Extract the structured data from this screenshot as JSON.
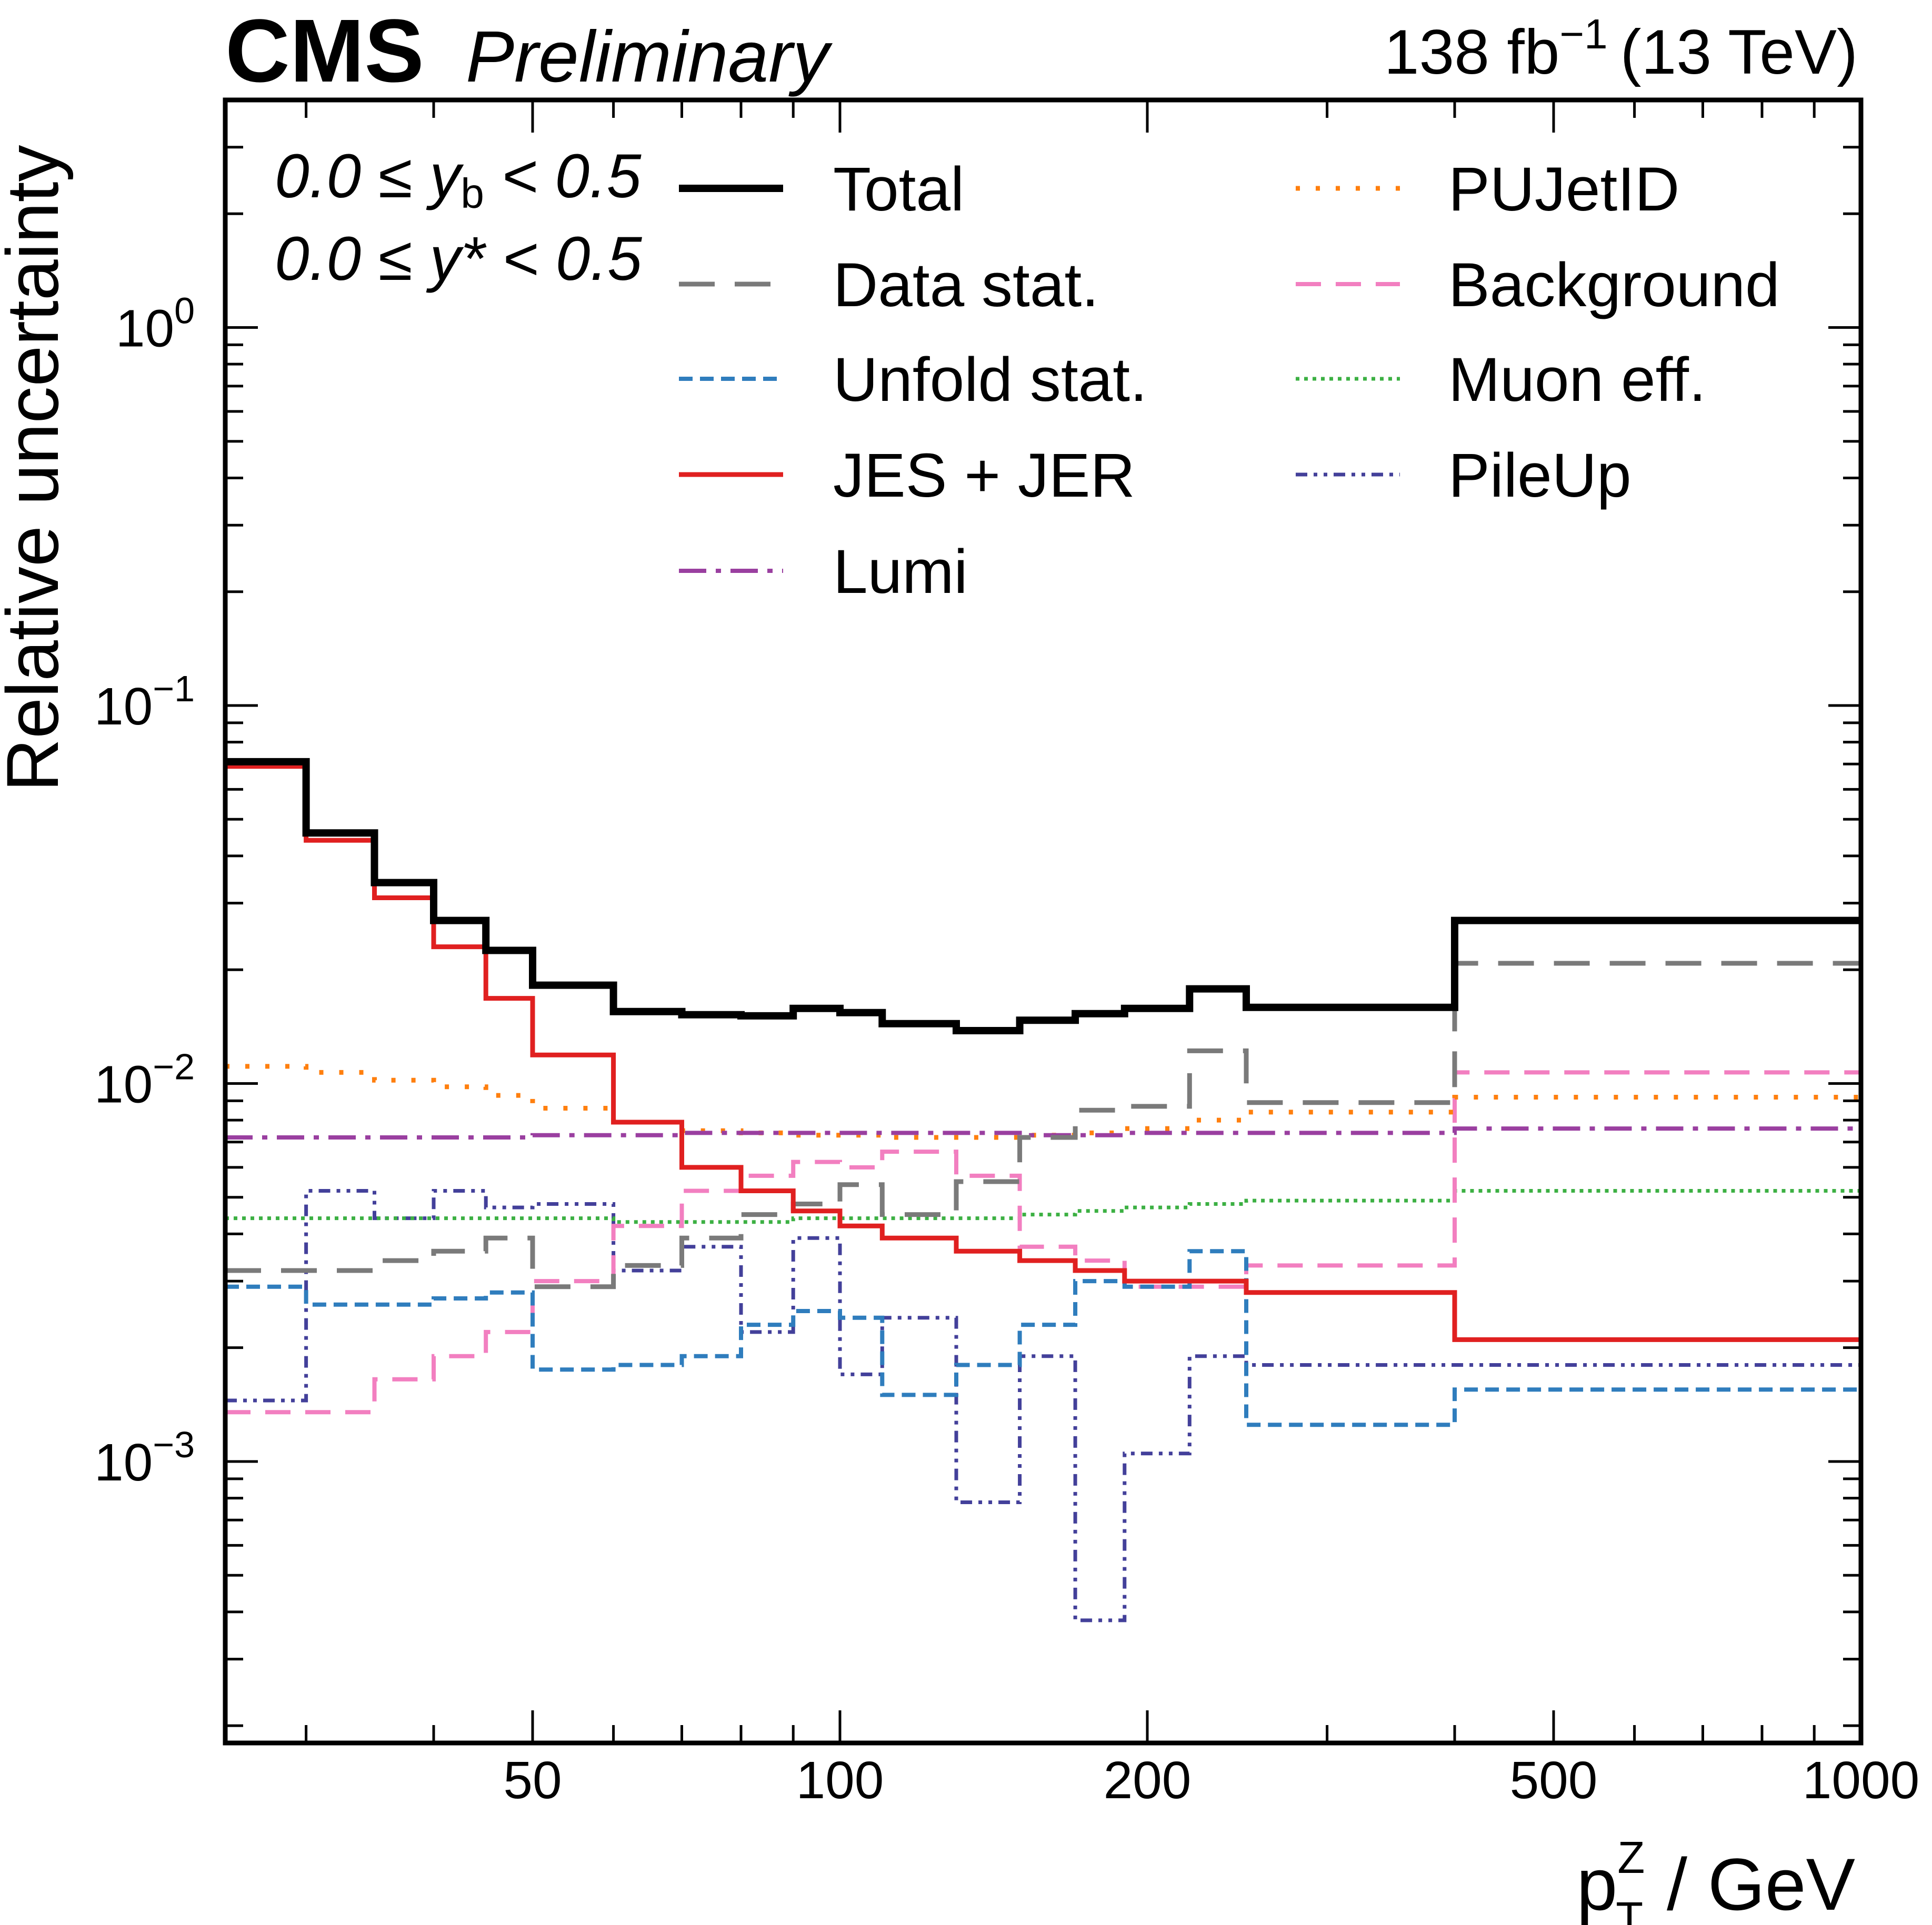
{
  "header": {
    "experiment": "CMS",
    "status": "Preliminary",
    "lumi_text": "138 fb",
    "lumi_exponent": "−1",
    "energy": "(13 TeV)"
  },
  "annotations": {
    "cut_yb": {
      "low": "0.0 ≤ ",
      "var": "y",
      "sub": "b",
      "high": " < 0.5"
    },
    "cut_ystar": {
      "low": "0.0 ≤ ",
      "var": "y*",
      "high": " < 0.5"
    }
  },
  "colors": {
    "total": "#000000",
    "data_stat": "#7a7a7a",
    "unfold_stat": "#2f7dbd",
    "jes_jer": "#e02020",
    "lumi": "#9a3fa0",
    "pujetid": "#ff7f0e",
    "background": "#f27fc0",
    "muon_eff": "#3cb043",
    "pileup": "#43409a"
  },
  "chart_data": {
    "type": "step-histogram",
    "title": "",
    "xlabel": {
      "base": "p",
      "sup": "Z",
      "sub": "T",
      "unit": " / GeV"
    },
    "ylabel": "Relative uncertainty",
    "xscale": "log",
    "yscale": "log",
    "xlim": [
      25,
      1000
    ],
    "ylim": [
      0.00018,
      4.0
    ],
    "x_ticks": [
      50,
      100,
      200,
      500,
      1000
    ],
    "x_tick_labels": [
      "50",
      "100",
      "200",
      "500",
      "1000"
    ],
    "y_ticks": [
      0.001,
      0.01,
      0.1,
      1
    ],
    "y_tick_labels": [
      {
        "base": "10",
        "exp": "−3"
      },
      {
        "base": "10",
        "exp": "−2"
      },
      {
        "base": "10",
        "exp": "−1"
      },
      {
        "base": "10",
        "exp": "0"
      }
    ],
    "legend_position": "top-right",
    "bin_edges": [
      25,
      30,
      35,
      40,
      45,
      50,
      60,
      70,
      80,
      90,
      100,
      110,
      130,
      150,
      170,
      190,
      220,
      250,
      400,
      1000
    ],
    "series": [
      {
        "key": "total",
        "name": "Total",
        "style": "solid-thick",
        "values": [
          0.071,
          0.046,
          0.034,
          0.027,
          0.0225,
          0.0182,
          0.0155,
          0.0152,
          0.0151,
          0.0158,
          0.0154,
          0.0144,
          0.0138,
          0.0147,
          0.0153,
          0.0158,
          0.0178,
          0.0159,
          0.027
        ]
      },
      {
        "key": "data_stat",
        "name": "Data stat.",
        "style": "long-dash",
        "values": [
          0.0032,
          0.0032,
          0.0034,
          0.0036,
          0.0039,
          0.0029,
          0.0033,
          0.0039,
          0.0045,
          0.0048,
          0.0054,
          0.0045,
          0.0055,
          0.0072,
          0.0085,
          0.0087,
          0.0122,
          0.0089,
          0.0208
        ]
      },
      {
        "key": "unfold_stat",
        "name": "Unfold stat.",
        "style": "short-dash",
        "values": [
          0.0029,
          0.0026,
          0.0026,
          0.0027,
          0.0028,
          0.00175,
          0.0018,
          0.0019,
          0.0023,
          0.0025,
          0.0024,
          0.0015,
          0.0018,
          0.0023,
          0.003,
          0.0029,
          0.0036,
          0.00125,
          0.00155
        ]
      },
      {
        "key": "jes_jer",
        "name": "JES + JER",
        "style": "solid",
        "values": [
          0.069,
          0.044,
          0.031,
          0.023,
          0.0168,
          0.0119,
          0.0079,
          0.006,
          0.0052,
          0.0046,
          0.0042,
          0.0039,
          0.0036,
          0.0034,
          0.0032,
          0.003,
          0.003,
          0.0028,
          0.0021
        ]
      },
      {
        "key": "lumi",
        "name": "Lumi",
        "style": "dash-dot",
        "values": [
          0.0072,
          0.0072,
          0.0072,
          0.0072,
          0.0072,
          0.0073,
          0.0073,
          0.0074,
          0.0074,
          0.0074,
          0.0074,
          0.0074,
          0.0074,
          0.0073,
          0.0073,
          0.0074,
          0.0074,
          0.0074,
          0.0076
        ]
      },
      {
        "key": "pujetid",
        "name": "PUJetID",
        "style": "sparse-dot",
        "values": [
          0.0111,
          0.0107,
          0.0102,
          0.0098,
          0.0093,
          0.0086,
          0.0079,
          0.0075,
          0.0074,
          0.0073,
          0.0073,
          0.0072,
          0.0072,
          0.0073,
          0.0074,
          0.0076,
          0.008,
          0.0084,
          0.0092
        ]
      },
      {
        "key": "background",
        "name": "Background",
        "style": "medium-dash",
        "values": [
          0.00135,
          0.00135,
          0.00165,
          0.0019,
          0.0022,
          0.003,
          0.0042,
          0.0052,
          0.0057,
          0.0062,
          0.006,
          0.0066,
          0.0057,
          0.0037,
          0.0034,
          0.0029,
          0.0029,
          0.0033,
          0.0107
        ]
      },
      {
        "key": "muon_eff",
        "name": "Muon eff.",
        "style": "dense-dot",
        "values": [
          0.0044,
          0.0044,
          0.0044,
          0.0044,
          0.0044,
          0.0044,
          0.0043,
          0.0043,
          0.0043,
          0.0044,
          0.0044,
          0.0044,
          0.0044,
          0.0045,
          0.0046,
          0.0047,
          0.0048,
          0.0049,
          0.0052
        ]
      },
      {
        "key": "pileup",
        "name": "PileUp",
        "style": "dash-dot-dot",
        "values": [
          0.00145,
          0.0052,
          0.0044,
          0.0052,
          0.0047,
          0.0048,
          0.0032,
          0.0037,
          0.0022,
          0.0039,
          0.0017,
          0.0024,
          0.00078,
          0.0019,
          0.00038,
          0.00105,
          0.0019,
          0.0018,
          0.0018
        ]
      }
    ]
  }
}
